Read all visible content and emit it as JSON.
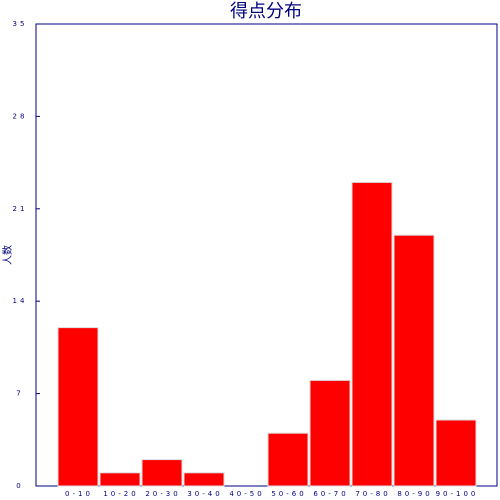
{
  "chart_data": {
    "type": "bar",
    "title": "得点分布",
    "y_label": "人数",
    "categories": [
      "0-10",
      "10-20",
      "20-30",
      "30-40",
      "40-50",
      "50-60",
      "60-70",
      "70-80",
      "80-90",
      "90-100"
    ],
    "values": [
      12,
      1,
      2,
      1,
      0,
      4,
      8,
      23,
      19,
      5
    ],
    "color": "#ff0000",
    "ylim": [
      0,
      35
    ],
    "yticks": [
      0,
      7,
      14,
      21,
      28,
      35
    ]
  }
}
